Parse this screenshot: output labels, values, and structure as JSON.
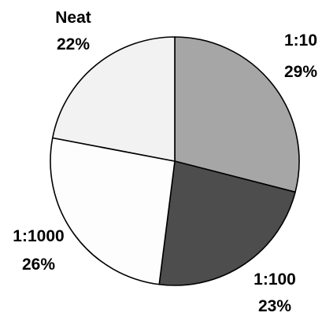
{
  "chart_data": {
    "type": "pie",
    "title": "",
    "slices": [
      {
        "label": "1:10",
        "value": 29,
        "value_label": "29%",
        "color": "#a6a6a6"
      },
      {
        "label": "1:100",
        "value": 23,
        "value_label": "23%",
        "color": "#4d4d4d"
      },
      {
        "label": "1:1000",
        "value": 26,
        "value_label": "26%",
        "color": "#fdfdfd"
      },
      {
        "label": "Neat",
        "value": 22,
        "value_label": "22%",
        "color": "#f2f2f2"
      }
    ],
    "start_angle_deg": 0,
    "direction": "clockwise",
    "legend": "none"
  }
}
